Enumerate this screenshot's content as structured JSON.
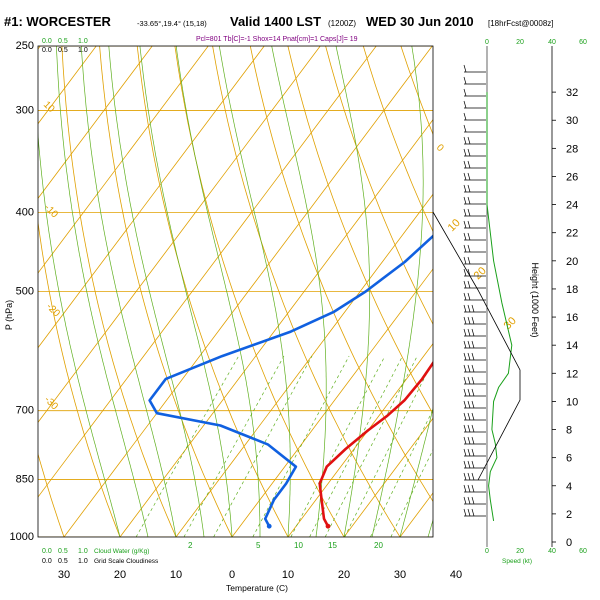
{
  "header": {
    "station": "#1: WORCESTER",
    "coords": "-33.65°,19.4° (15,18)",
    "valid": "Valid 1400 LST",
    "utc": "(1200Z)",
    "date": "WED 30 Jun 2010",
    "fcst": "[18hrFcst@0008z]",
    "params": "Pcl=801 Tb[C]=-1 Shox=14 Pnat[cm]=1 Caps[J]= 19"
  },
  "colors": {
    "temperature": "#e01010",
    "dewpoint": "#1060e0",
    "isobar_isotherm": "#e0a000",
    "dry_adiabat": "#e0a000",
    "moist_adiabat": "#60b020",
    "mixing_ratio": "#60b020",
    "cloud": "#1aa01a",
    "wind_profile": "#1aa01a"
  },
  "axis_labels": {
    "x": "Temperature (C)",
    "y": "P (hPa)",
    "height": "Height (1000 Feet)",
    "speed": "Speed (kt)",
    "cloud_water": "Cloud Water (g/Kg)",
    "grid_cloud": "Grid Scale Cloudiness"
  },
  "chart_data": {
    "type": "line",
    "xlabel": "Temperature (C)",
    "ylabel": "P (hPa)",
    "xlim": [
      -35,
      45
    ],
    "ylim": [
      1000,
      250
    ],
    "y_scale": "log",
    "grid": true,
    "pressure_ticks": [
      250,
      300,
      400,
      500,
      700,
      850,
      1000
    ],
    "temperature_ticks": [
      30,
      20,
      10,
      0,
      10,
      20,
      30,
      40
    ],
    "height_ticks": [
      0,
      2,
      4,
      6,
      8,
      10,
      12,
      14,
      16,
      18,
      20,
      22,
      24,
      26,
      28,
      30,
      32
    ],
    "height_range_kft": [
      0,
      34
    ],
    "speed_ticks": [
      0,
      20,
      40,
      60
    ],
    "cloud_ticks": [
      "0.0",
      "0.5",
      "1.0"
    ],
    "dry_adiabat_labels": [
      "10",
      "0",
      "-10",
      "-20",
      "-30"
    ],
    "moist_adiabat_labels": [
      "0",
      "10",
      "20",
      "30"
    ],
    "mixing_ratio_labels": [
      "2",
      "5",
      "10",
      "15",
      "20"
    ],
    "series": [
      {
        "name": "temperature",
        "points": [
          [
            15.7,
            970
          ],
          [
            14,
            950
          ],
          [
            11,
            900
          ],
          [
            8.5,
            860
          ],
          [
            7.5,
            820
          ],
          [
            8.5,
            780
          ],
          [
            10,
            740
          ],
          [
            11.5,
            710
          ],
          [
            12.5,
            680
          ],
          [
            12.8,
            640
          ],
          [
            12.5,
            600
          ],
          [
            11.5,
            560
          ],
          [
            10.5,
            530
          ],
          [
            9,
            500
          ],
          [
            6.5,
            460
          ],
          [
            3.5,
            420
          ],
          [
            0.5,
            390
          ],
          [
            -3,
            360
          ],
          [
            -7,
            330
          ],
          [
            -11,
            305
          ],
          [
            -14,
            285
          ],
          [
            -16,
            270
          ]
        ]
      },
      {
        "name": "dewpoint",
        "points": [
          [
            5.2,
            970
          ],
          [
            3.5,
            950
          ],
          [
            2.5,
            900
          ],
          [
            2.5,
            860
          ],
          [
            2,
            820
          ],
          [
            -6,
            770
          ],
          [
            -17,
            730
          ],
          [
            -30,
            705
          ],
          [
            -33,
            680
          ],
          [
            -33,
            640
          ],
          [
            -26,
            600
          ],
          [
            -17,
            560
          ],
          [
            -12,
            530
          ],
          [
            -9,
            500
          ],
          [
            -6,
            460
          ],
          [
            -4,
            420
          ],
          [
            -3,
            390
          ],
          [
            -3,
            360
          ],
          [
            -3.5,
            330
          ],
          [
            -5,
            305
          ],
          [
            -6.5,
            285
          ],
          [
            -9,
            270
          ]
        ]
      }
    ],
    "wind_speed_profile": [
      {
        "height_kft": 1.5,
        "speed_kt": 4
      },
      {
        "height_kft": 3,
        "speed_kt": 2
      },
      {
        "height_kft": 4,
        "speed_kt": 1
      },
      {
        "height_kft": 5,
        "speed_kt": 2
      },
      {
        "height_kft": 6,
        "speed_kt": 6
      },
      {
        "height_kft": 7,
        "speed_kt": 5
      },
      {
        "height_kft": 8,
        "speed_kt": 3
      },
      {
        "height_kft": 10,
        "speed_kt": 4
      },
      {
        "height_kft": 11,
        "speed_kt": 7
      },
      {
        "height_kft": 12,
        "speed_kt": 13
      },
      {
        "height_kft": 13,
        "speed_kt": 14
      },
      {
        "height_kft": 14,
        "speed_kt": 15
      },
      {
        "height_kft": 17,
        "speed_kt": 9
      },
      {
        "height_kft": 20,
        "speed_kt": 4
      },
      {
        "height_kft": 24,
        "speed_kt": 0
      },
      {
        "height_kft": 32,
        "speed_kt": 0
      }
    ]
  }
}
